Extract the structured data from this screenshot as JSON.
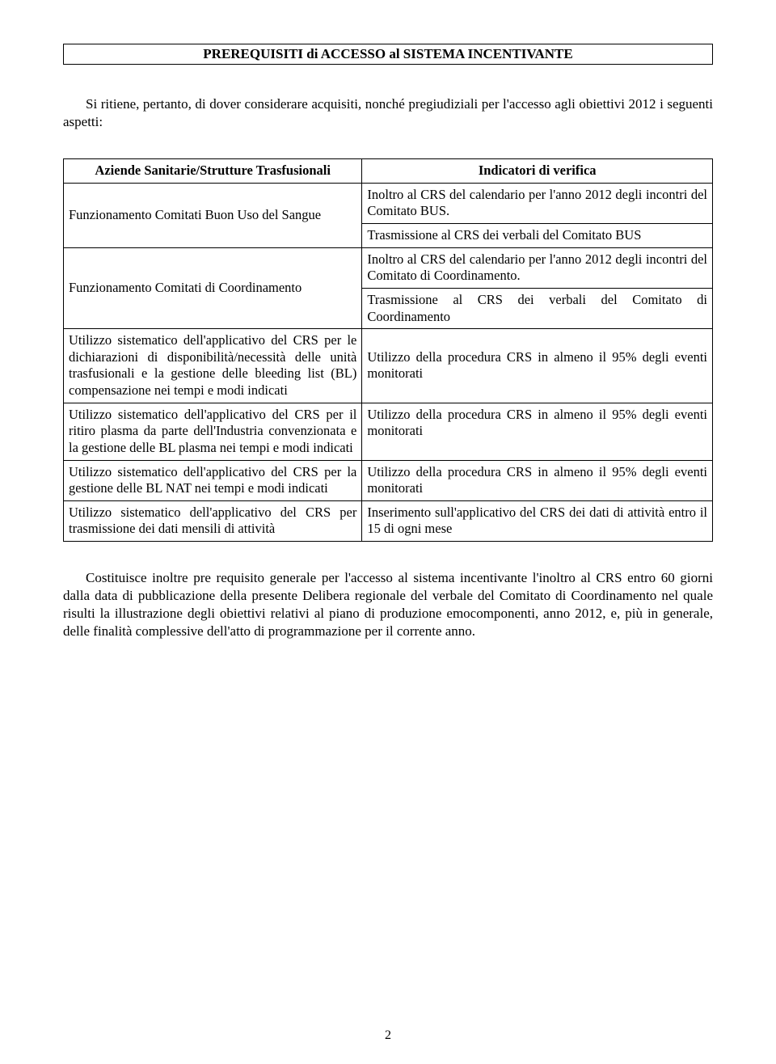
{
  "title": "PREREQUISITI di ACCESSO al SISTEMA INCENTIVANTE",
  "intro": "Si ritiene, pertanto, di dover considerare acquisiti, nonché pregiudiziali per l'accesso agli obiettivi 2012  i seguenti aspetti:",
  "table": {
    "header_left": "Aziende Sanitarie/Strutture Trasfusionali",
    "header_right": "Indicatori di verifica",
    "r1_left": "Funzionamento Comitati Buon Uso del Sangue",
    "r1_right_a": "Inoltro al CRS del calendario per l'anno 2012 degli incontri del  Comitato BUS.",
    "r1_right_b": "Trasmissione al CRS dei verbali del Comitato BUS",
    "r2_left": "Funzionamento Comitati di Coordinamento",
    "r2_right_a": "Inoltro al CRS del calendario per l'anno 2012 degli incontri del  Comitato di Coordinamento.",
    "r2_right_b": "Trasmissione al CRS dei verbali del Comitato di Coordinamento",
    "r3_left": "Utilizzo sistematico dell'applicativo del CRS per le dichiarazioni di disponibilità/necessità delle unità trasfusionali e la gestione delle bleeding list (BL) compensazione nei tempi e modi  indicati",
    "r3_right": "Utilizzo della procedura CRS in almeno il 95% degli eventi monitorati",
    "r4_left": "Utilizzo sistematico dell'applicativo del CRS per il ritiro plasma da parte dell'Industria convenzionata e la gestione delle BL plasma nei tempi e modi indicati",
    "r4_right": "Utilizzo della procedura CRS in almeno il 95% degli eventi monitorati",
    "r5_left": "Utilizzo sistematico dell'applicativo del CRS per la gestione delle BL NAT nei tempi e modi indicati",
    "r5_right": "Utilizzo della procedura CRS in almeno il 95% degli eventi monitorati",
    "r6_left": "Utilizzo sistematico dell'applicativo del CRS per trasmissione dei dati mensili di attività",
    "r6_right": "Inserimento sull'applicativo del CRS dei dati di attività entro il 15 di ogni mese"
  },
  "closing": "Costituisce inoltre pre requisito generale per l'accesso al sistema incentivante l'inoltro al CRS entro 60 giorni dalla data di pubblicazione della presente Delibera regionale del verbale del Comitato di Coordinamento nel quale risulti la illustrazione degli  obiettivi relativi al piano di produzione emocomponenti, anno 2012, e, più in generale, delle finalità complessive dell'atto di programmazione per il corrente anno.",
  "page_number": "2"
}
